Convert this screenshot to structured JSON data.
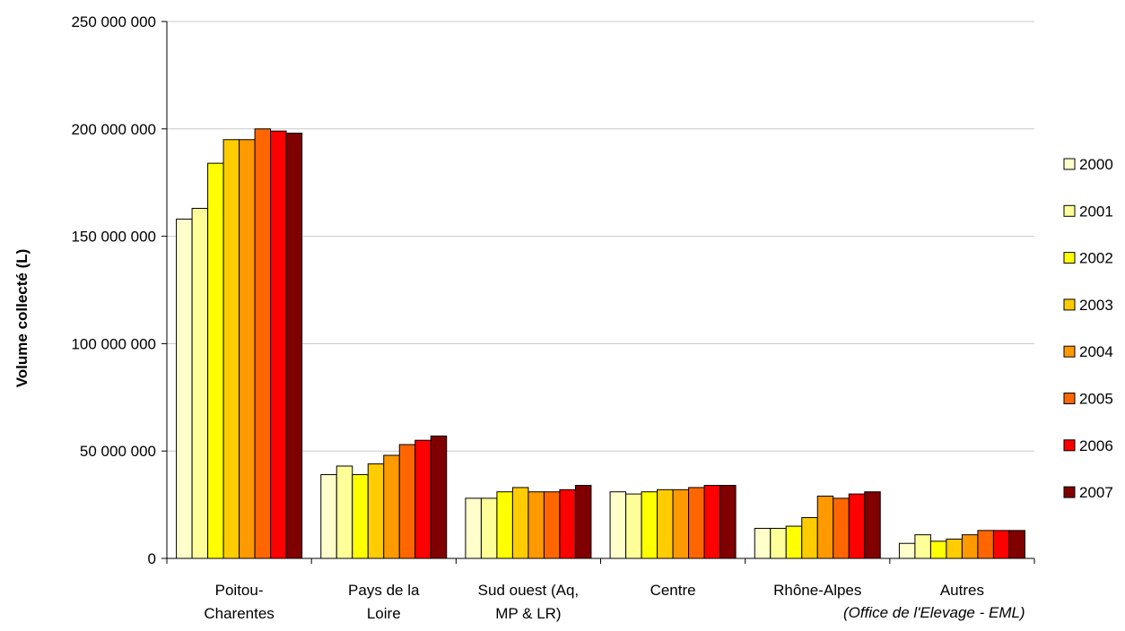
{
  "source_note": "(Office de l'Elevage - EML)",
  "chart_data": {
    "type": "bar",
    "title": "",
    "xlabel": "",
    "ylabel": "Volume collecté (L)",
    "ylim": [
      0,
      250000000
    ],
    "yticks": [
      0,
      50000000,
      100000000,
      150000000,
      200000000,
      250000000
    ],
    "ytick_labels": [
      "0",
      "50 000 000",
      "100 000 000",
      "150 000 000",
      "200 000 000",
      "250 000 000"
    ],
    "grid": true,
    "legend_position": "right",
    "categories": [
      [
        "Poitou-",
        "Charentes"
      ],
      [
        "Pays de la",
        "Loire"
      ],
      [
        "Sud ouest (Aq,",
        "MP & LR)"
      ],
      [
        "Centre"
      ],
      [
        "Rhône-Alpes"
      ],
      [
        "Autres"
      ]
    ],
    "series": [
      {
        "name": "2000",
        "color": "#FFFFCC",
        "values": [
          158000000,
          39000000,
          28000000,
          31000000,
          14000000,
          7000000
        ]
      },
      {
        "name": "2001",
        "color": "#FFFF99",
        "values": [
          163000000,
          43000000,
          28000000,
          30000000,
          14000000,
          11000000
        ]
      },
      {
        "name": "2002",
        "color": "#FFFF00",
        "values": [
          184000000,
          39000000,
          31000000,
          31000000,
          15000000,
          8000000
        ]
      },
      {
        "name": "2003",
        "color": "#FFCC00",
        "values": [
          195000000,
          44000000,
          33000000,
          32000000,
          19000000,
          9000000
        ]
      },
      {
        "name": "2004",
        "color": "#FF9900",
        "values": [
          195000000,
          48000000,
          31000000,
          32000000,
          29000000,
          11000000
        ]
      },
      {
        "name": "2005",
        "color": "#FF6600",
        "values": [
          200000000,
          53000000,
          31000000,
          33000000,
          28000000,
          13000000
        ]
      },
      {
        "name": "2006",
        "color": "#FF0000",
        "values": [
          199000000,
          55000000,
          32000000,
          34000000,
          30000000,
          13000000
        ]
      },
      {
        "name": "2007",
        "color": "#800000",
        "values": [
          198000000,
          57000000,
          34000000,
          34000000,
          31000000,
          13000000
        ]
      }
    ]
  }
}
